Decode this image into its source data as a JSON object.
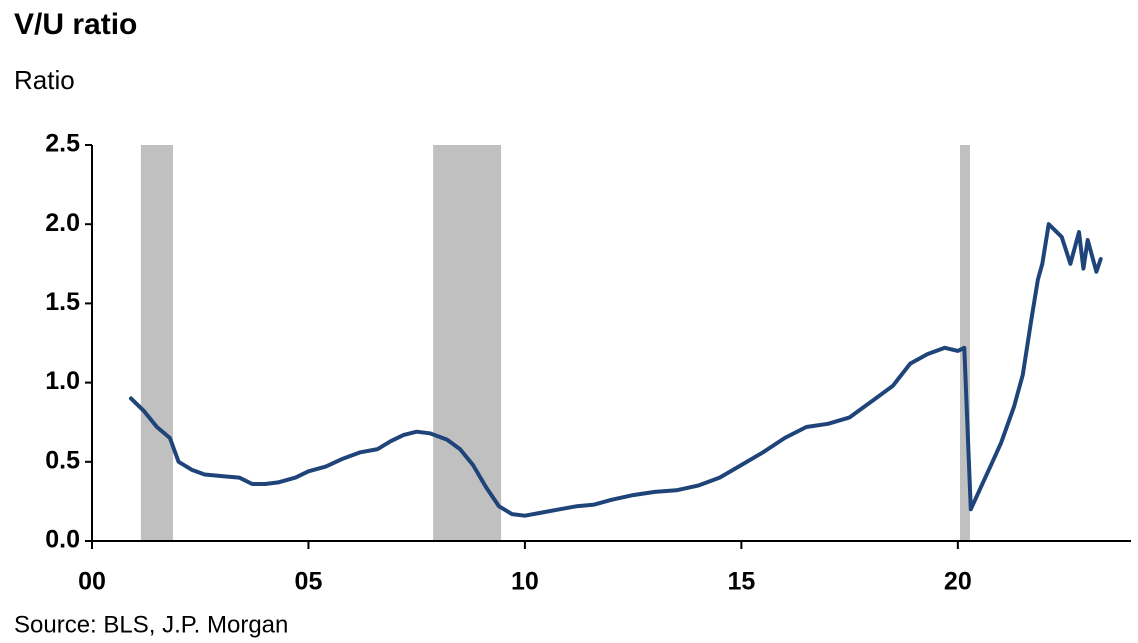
{
  "chart_data": {
    "type": "line",
    "title": "V/U ratio",
    "subtitle": "Ratio",
    "source": "Source: BLS, J.P. Morgan",
    "xlim": [
      2000,
      2024
    ],
    "ylim": [
      0,
      2.5
    ],
    "xticks": [
      {
        "value": 2000,
        "label": "00"
      },
      {
        "value": 2005,
        "label": "05"
      },
      {
        "value": 2010,
        "label": "10"
      },
      {
        "value": 2015,
        "label": "15"
      },
      {
        "value": 2020,
        "label": "20"
      }
    ],
    "yticks": [
      {
        "value": 0,
        "label": "0.0"
      },
      0.5,
      {
        "value": 1,
        "label": "1.0"
      },
      1.5,
      {
        "value": 2,
        "label": "2.0"
      },
      2.5
    ],
    "recessions": [
      [
        2001.13,
        2001.87
      ],
      [
        2007.88,
        2009.45
      ],
      [
        2020.05,
        2020.28
      ]
    ],
    "recession_color": "#c0c0c0",
    "x": [
      2000.9,
      2001.2,
      2001.5,
      2001.8,
      2002.0,
      2002.3,
      2002.6,
      2003.0,
      2003.4,
      2003.7,
      2004.0,
      2004.3,
      2004.7,
      2005.0,
      2005.4,
      2005.8,
      2006.2,
      2006.6,
      2006.9,
      2007.2,
      2007.5,
      2007.8,
      2008.2,
      2008.5,
      2008.8,
      2009.1,
      2009.4,
      2009.7,
      2010.0,
      2010.4,
      2010.8,
      2011.2,
      2011.6,
      2012.0,
      2012.5,
      2013.0,
      2013.5,
      2014.0,
      2014.5,
      2015.0,
      2015.5,
      2016.0,
      2016.5,
      2017.0,
      2017.5,
      2018.0,
      2018.5,
      2018.9,
      2019.3,
      2019.7,
      2020.0,
      2020.15,
      2020.3,
      2020.55,
      2020.8,
      2021.0,
      2021.3,
      2021.5,
      2021.7,
      2021.85,
      2021.95,
      2022.1,
      2022.4,
      2022.6,
      2022.8,
      2022.9,
      2023.0,
      2023.2,
      2023.3
    ],
    "series": [
      {
        "name": "V/U ratio",
        "color": "#1f4479",
        "values": [
          0.9,
          0.82,
          0.72,
          0.65,
          0.5,
          0.45,
          0.42,
          0.41,
          0.4,
          0.36,
          0.36,
          0.37,
          0.4,
          0.44,
          0.47,
          0.52,
          0.56,
          0.58,
          0.63,
          0.67,
          0.69,
          0.68,
          0.64,
          0.58,
          0.48,
          0.34,
          0.22,
          0.17,
          0.16,
          0.18,
          0.2,
          0.22,
          0.23,
          0.26,
          0.29,
          0.31,
          0.32,
          0.35,
          0.4,
          0.48,
          0.56,
          0.65,
          0.72,
          0.74,
          0.78,
          0.88,
          0.98,
          1.12,
          1.18,
          1.22,
          1.2,
          1.22,
          0.2,
          0.35,
          0.5,
          0.62,
          0.85,
          1.05,
          1.4,
          1.65,
          1.75,
          2.0,
          1.92,
          1.75,
          1.95,
          1.72,
          1.9,
          1.7,
          1.78
        ]
      }
    ]
  }
}
